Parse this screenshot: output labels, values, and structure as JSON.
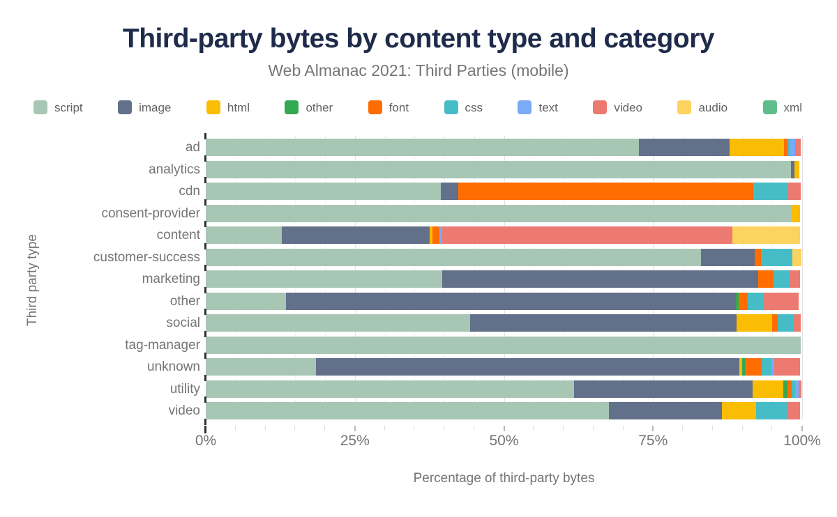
{
  "header": {
    "title": "Third-party bytes by content type and category",
    "subtitle": "Web Almanac 2021: Third Parties (mobile)"
  },
  "chart_data": {
    "type": "bar",
    "orientation": "horizontal",
    "stacked": true,
    "title": "Third-party bytes by content type and category",
    "subtitle": "Web Almanac 2021: Third Parties (mobile)",
    "xlabel": "Percentage of third-party bytes",
    "ylabel": "Third party type",
    "xlim": [
      0,
      100
    ],
    "x_tick_values": [
      0,
      25,
      50,
      75,
      100
    ],
    "x_ticks": [
      "0%",
      "25%",
      "50%",
      "75%",
      "100%"
    ],
    "grid": "vertical, minor every 5%, major every 25%",
    "legend_position": "top",
    "units": "percent",
    "legend": [
      {
        "label": "script",
        "color": "#a7c7b4"
      },
      {
        "label": "image",
        "color": "#62708a"
      },
      {
        "label": "html",
        "color": "#fbbc04"
      },
      {
        "label": "other",
        "color": "#34a853"
      },
      {
        "label": "font",
        "color": "#ff6d01"
      },
      {
        "label": "css",
        "color": "#46bdc6"
      },
      {
        "label": "text",
        "color": "#7baaf7"
      },
      {
        "label": "video",
        "color": "#ec7a70"
      },
      {
        "label": "audio",
        "color": "#fcd35e"
      },
      {
        "label": "xml",
        "color": "#5fbd8b"
      }
    ],
    "categories": [
      "ad",
      "analytics",
      "cdn",
      "consent-provider",
      "content",
      "customer-success",
      "marketing",
      "other",
      "social",
      "tag-manager",
      "unknown",
      "utility",
      "video"
    ],
    "series": [
      {
        "name": "script",
        "values": [
          72.6,
          98.1,
          39.4,
          98.3,
          12.7,
          83.0,
          39.7,
          13.5,
          44.3,
          99.8,
          18.5,
          61.7,
          67.6
        ]
      },
      {
        "name": "image",
        "values": [
          15.2,
          0.6,
          2.9,
          0,
          24.8,
          9.1,
          52.9,
          75.4,
          44.7,
          0,
          71.0,
          30.0,
          18.9
        ]
      },
      {
        "name": "html",
        "values": [
          9.2,
          0.8,
          0,
          1.4,
          0.5,
          0,
          0,
          0,
          6.0,
          0,
          0.4,
          5.1,
          5.8
        ]
      },
      {
        "name": "other",
        "values": [
          0,
          0,
          0,
          0,
          0,
          0,
          0,
          0.4,
          0,
          0,
          0.5,
          0.7,
          0
        ]
      },
      {
        "name": "font",
        "values": [
          0.6,
          0,
          49.5,
          0,
          1.2,
          1.0,
          2.6,
          1.6,
          0.9,
          0,
          2.8,
          0.7,
          0
        ]
      },
      {
        "name": "css",
        "values": [
          0.4,
          0,
          5.9,
          0,
          0,
          5.3,
          2.6,
          2.5,
          2.6,
          0,
          1.7,
          0.6,
          5.1
        ]
      },
      {
        "name": "text",
        "values": [
          0.8,
          0,
          0,
          0,
          0.4,
          0,
          0,
          0,
          0,
          0,
          0.4,
          0.6,
          0
        ]
      },
      {
        "name": "video",
        "values": [
          1.0,
          0,
          2.1,
          0,
          48.7,
          0,
          1.9,
          6.0,
          1.3,
          0,
          4.4,
          0.5,
          2.2
        ]
      },
      {
        "name": "audio",
        "values": [
          0,
          0,
          0,
          0,
          11.4,
          1.5,
          0,
          0,
          0,
          0,
          0,
          0,
          0
        ]
      },
      {
        "name": "xml",
        "values": [
          0,
          0,
          0,
          0,
          0,
          0,
          0,
          0,
          0,
          0,
          0,
          0,
          0
        ]
      }
    ]
  },
  "text_colors": {
    "title": "#1f2b4a",
    "subtitle": "#757575",
    "axis": "#757575",
    "legend": "#616161"
  }
}
